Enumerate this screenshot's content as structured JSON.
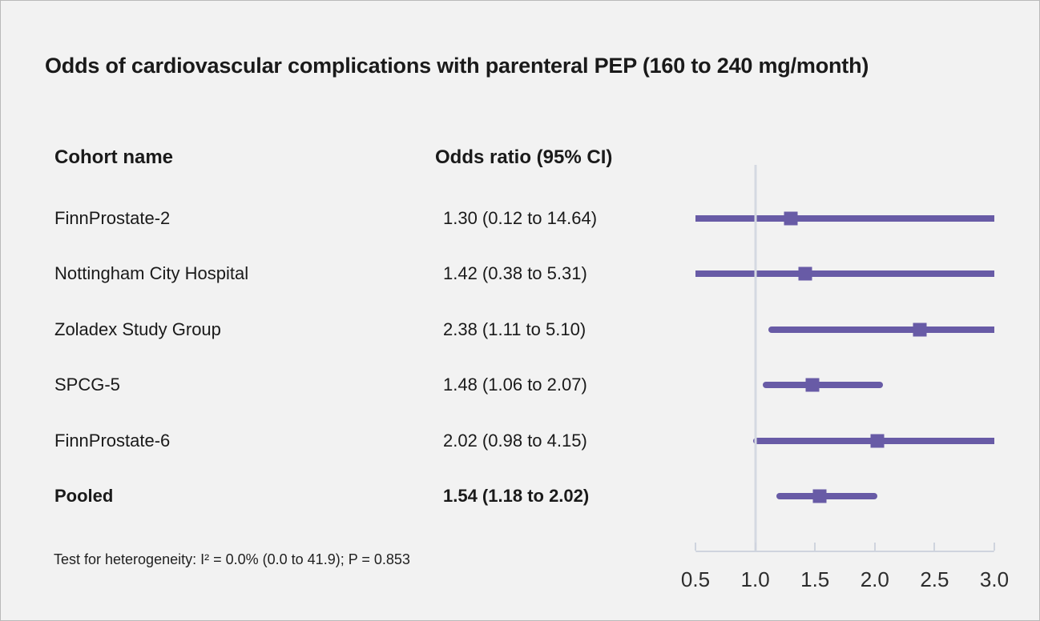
{
  "title": "Odds of cardiovascular complications with parenteral PEP (160 to 240 mg/month)",
  "table": {
    "cohort_header": "Cohort name",
    "or_header": "Odds ratio (95% CI)"
  },
  "footnote": "Test for heterogeneity: I² = 0.0% (0.0 to 41.9); P = 0.853",
  "colors": {
    "marker": "#685BA6",
    "line": "#685BA6",
    "ref_line": "#D5D9E2",
    "axis": "#CFD4DE",
    "background": "#F2F2F2",
    "text": "#1A1A1A"
  },
  "chart_data": {
    "type": "forest",
    "title": "Odds of cardiovascular complications with parenteral PEP (160 to 240 mg/month)",
    "columns": [
      "Cohort name",
      "Odds ratio (95% CI)"
    ],
    "studies": [
      {
        "name": "FinnProstate-2",
        "or": 1.3,
        "ci_low": 0.12,
        "ci_high": 14.64,
        "label": "1.30 (0.12 to 14.64)",
        "pooled": false
      },
      {
        "name": "Nottingham City Hospital",
        "or": 1.42,
        "ci_low": 0.38,
        "ci_high": 5.31,
        "label": "1.42 (0.38 to 5.31)",
        "pooled": false
      },
      {
        "name": "Zoladex Study Group",
        "or": 2.38,
        "ci_low": 1.11,
        "ci_high": 5.1,
        "label": "2.38 (1.11 to 5.10)",
        "pooled": false
      },
      {
        "name": "SPCG-5",
        "or": 1.48,
        "ci_low": 1.06,
        "ci_high": 2.07,
        "label": "1.48 (1.06 to 2.07)",
        "pooled": false
      },
      {
        "name": "FinnProstate-6",
        "or": 2.02,
        "ci_low": 0.98,
        "ci_high": 4.15,
        "label": "2.02 (0.98 to 4.15)",
        "pooled": false
      },
      {
        "name": "Pooled",
        "or": 1.54,
        "ci_low": 1.18,
        "ci_high": 2.02,
        "label": "1.54 (1.18 to 2.02)",
        "pooled": true
      }
    ],
    "x_ticks": [
      "0.5",
      "1.0",
      "1.5",
      "2.0",
      "2.5",
      "3.0"
    ],
    "x_tick_values": [
      0.5,
      1.0,
      1.5,
      2.0,
      2.5,
      3.0
    ],
    "xlim": [
      0.5,
      3.0
    ],
    "ref_value": 1.0,
    "grid": false,
    "legend": "none",
    "heterogeneity_note": "Test for heterogeneity: I² = 0.0% (0.0 to 41.9); P = 0.853"
  }
}
